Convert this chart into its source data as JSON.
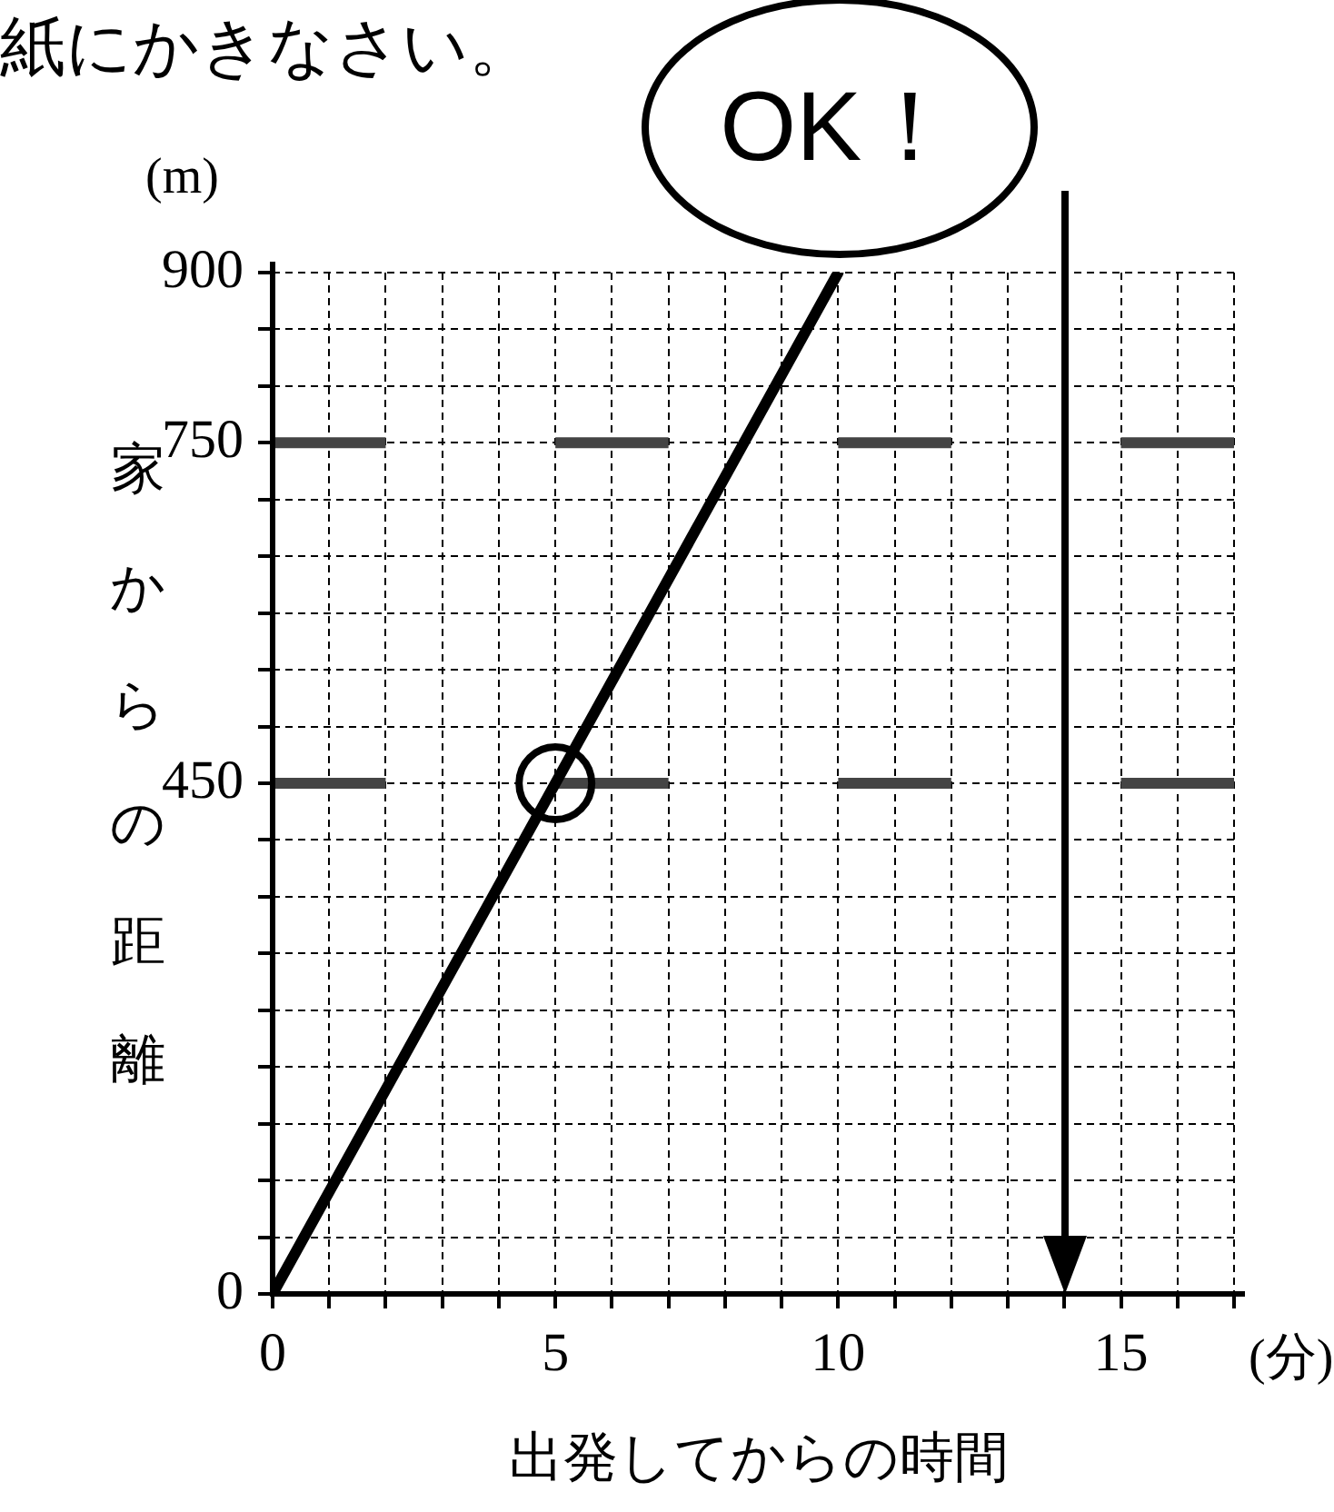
{
  "chart_data": {
    "type": "line",
    "title": "紙にかきなさい。",
    "xlabel": "出発してからの時間",
    "ylabel": "家からの距離",
    "annotations": [
      "(m)",
      "(分)",
      {
        "text": "OK！",
        "x": 10,
        "y": 900
      }
    ],
    "xlim": [
      0,
      17
    ],
    "ylim": [
      0,
      900
    ],
    "xticks": [
      0,
      {
        "value": 1,
        "label": null
      },
      {
        "value": 2,
        "label": null
      },
      {
        "value": 3,
        "label": null
      },
      {
        "value": 4,
        "label": null
      },
      5,
      {
        "value": 6,
        "label": null
      },
      {
        "value": 7,
        "label": null
      },
      {
        "value": 8,
        "label": null
      },
      {
        "value": 9,
        "label": null
      },
      10,
      {
        "value": 11,
        "label": null
      },
      {
        "value": 12,
        "label": null
      },
      {
        "value": 13,
        "label": null
      },
      {
        "value": 14,
        "label": null
      },
      15,
      {
        "value": 16,
        "label": null
      },
      {
        "value": 17,
        "label": null
      }
    ],
    "yticks": [
      0,
      {
        "value": 50,
        "label": null
      },
      {
        "value": 100,
        "label": null
      },
      {
        "value": 150,
        "label": null
      },
      {
        "value": 200,
        "label": null
      },
      {
        "value": 250,
        "label": null
      },
      {
        "value": 300,
        "label": null
      },
      {
        "value": 350,
        "label": null
      },
      {
        "value": 400,
        "label": null
      },
      450,
      {
        "value": 500,
        "label": null
      },
      {
        "value": 550,
        "label": null
      },
      {
        "value": 600,
        "label": null
      },
      {
        "value": 650,
        "label": null
      },
      {
        "value": 700,
        "label": null
      },
      750,
      {
        "value": 800,
        "label": null
      },
      {
        "value": 850,
        "label": null
      },
      900
    ],
    "grid": true,
    "legend": false,
    "ref_lines": [
      {
        "axis": "y",
        "value": 750,
        "color": "#444444",
        "line_style": "dashed"
      },
      {
        "axis": "y",
        "value": 450,
        "color": "#444444",
        "line_style": "dashed"
      },
      {
        "axis": "x",
        "value": 14,
        "color": "#000000",
        "line_style": "solid"
      }
    ],
    "series": [
      {
        "type": "line",
        "color": "#000000",
        "x": [
          0,
          10
        ],
        "values": [
          0,
          900
        ],
        "marker": "none",
        "line_style": "solid"
      },
      {
        "type": "scatter",
        "color": "#000000",
        "x": [
          5
        ],
        "values": [
          450
        ],
        "marker": "circle"
      }
    ]
  }
}
